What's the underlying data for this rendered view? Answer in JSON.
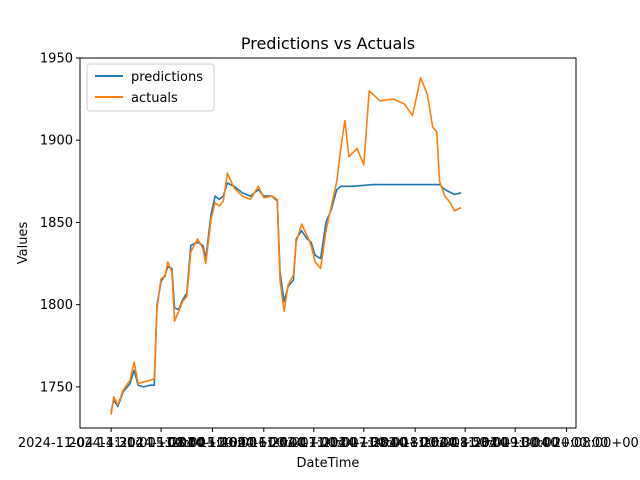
{
  "chart_data": {
    "type": "line",
    "title": "Predictions vs Actuals",
    "xlabel": "DateTime",
    "ylabel": "Values",
    "ylim": [
      1725,
      1950
    ],
    "yticks": [
      1750,
      1800,
      1850,
      1900,
      1950
    ],
    "xticks_labels": [
      "2024-11-04 14:31:00+00:00",
      "2024-11-04 15:08:00+00:00",
      "2024-11-04 15:46:00+00:00",
      "2024-11-04 16:24:00+00:00",
      "2024-11-04 17:01:00+00:00",
      "2024-11-04 17:38:00+00:00",
      "2024-11-04 18:16:00+00:00",
      "2024-11-04 18:53:00+00:00",
      "2024-11-04 19:30:00+00:00",
      "2024-11-04 20:08:00+00:00"
    ],
    "grid": false,
    "legend_position": "top-left",
    "series": [
      {
        "name": "predictions",
        "color": "#1f77b4",
        "points": [
          [
            "2024-11-04 14:31",
            1735
          ],
          [
            "2024-11-04 14:33",
            1742
          ],
          [
            "2024-11-04 14:36",
            1738
          ],
          [
            "2024-11-04 14:40",
            1747
          ],
          [
            "2024-11-04 14:45",
            1752
          ],
          [
            "2024-11-04 14:48",
            1760
          ],
          [
            "2024-11-04 14:51",
            1751
          ],
          [
            "2024-11-04 14:55",
            1750
          ],
          [
            "2024-11-04 15:00",
            1751
          ],
          [
            "2024-11-04 15:03",
            1751
          ],
          [
            "2024-11-04 15:05",
            1800
          ],
          [
            "2024-11-04 15:08",
            1814
          ],
          [
            "2024-11-04 15:11",
            1818
          ],
          [
            "2024-11-04 15:13",
            1823
          ],
          [
            "2024-11-04 15:16",
            1822
          ],
          [
            "2024-11-04 15:18",
            1798
          ],
          [
            "2024-11-04 15:21",
            1797
          ],
          [
            "2024-11-04 15:24",
            1803
          ],
          [
            "2024-11-04 15:27",
            1807
          ],
          [
            "2024-11-04 15:30",
            1836
          ],
          [
            "2024-11-04 15:35",
            1838
          ],
          [
            "2024-11-04 15:39",
            1836
          ],
          [
            "2024-11-04 15:41",
            1828
          ],
          [
            "2024-11-04 15:45",
            1855
          ],
          [
            "2024-11-04 15:48",
            1866
          ],
          [
            "2024-11-04 15:51",
            1864
          ],
          [
            "2024-11-04 15:54",
            1866
          ],
          [
            "2024-11-04 15:57",
            1874
          ],
          [
            "2024-11-04 16:02",
            1872
          ],
          [
            "2024-11-04 16:08",
            1868
          ],
          [
            "2024-11-04 16:14",
            1866
          ],
          [
            "2024-11-04 16:20",
            1870
          ],
          [
            "2024-11-04 16:24",
            1866
          ],
          [
            "2024-11-04 16:30",
            1866
          ],
          [
            "2024-11-04 16:34",
            1863
          ],
          [
            "2024-11-04 16:36",
            1820
          ],
          [
            "2024-11-04 16:39",
            1802
          ],
          [
            "2024-11-04 16:42",
            1811
          ],
          [
            "2024-11-04 16:46",
            1815
          ],
          [
            "2024-11-04 16:48",
            1840
          ],
          [
            "2024-11-04 16:52",
            1845
          ],
          [
            "2024-11-04 16:56",
            1840
          ],
          [
            "2024-11-04 16:59",
            1838
          ],
          [
            "2024-11-04 17:02",
            1830
          ],
          [
            "2024-11-04 17:06",
            1828
          ],
          [
            "2024-11-04 17:10",
            1850
          ],
          [
            "2024-11-04 17:14",
            1858
          ],
          [
            "2024-11-04 17:18",
            1870
          ],
          [
            "2024-11-04 17:21",
            1872
          ],
          [
            "2024-11-04 17:30",
            1872
          ],
          [
            "2024-11-04 17:45",
            1873
          ],
          [
            "2024-11-04 18:00",
            1873
          ],
          [
            "2024-11-04 18:15",
            1873
          ],
          [
            "2024-11-04 18:25",
            1873
          ],
          [
            "2024-11-04 18:34",
            1873
          ],
          [
            "2024-11-04 18:38",
            1870
          ],
          [
            "2024-11-04 18:45",
            1867
          ],
          [
            "2024-11-04 18:50",
            1868
          ]
        ]
      },
      {
        "name": "actuals",
        "color": "#ff7f0e",
        "points": [
          [
            "2024-11-04 14:31",
            1733
          ],
          [
            "2024-11-04 14:33",
            1744
          ],
          [
            "2024-11-04 14:36",
            1739
          ],
          [
            "2024-11-04 14:40",
            1748
          ],
          [
            "2024-11-04 14:45",
            1754
          ],
          [
            "2024-11-04 14:48",
            1765
          ],
          [
            "2024-11-04 14:51",
            1752
          ],
          [
            "2024-11-04 14:55",
            1753
          ],
          [
            "2024-11-04 15:00",
            1754
          ],
          [
            "2024-11-04 15:03",
            1755
          ],
          [
            "2024-11-04 15:05",
            1798
          ],
          [
            "2024-11-04 15:08",
            1816
          ],
          [
            "2024-11-04 15:11",
            1817
          ],
          [
            "2024-11-04 15:13",
            1826
          ],
          [
            "2024-11-04 15:16",
            1820
          ],
          [
            "2024-11-04 15:18",
            1790
          ],
          [
            "2024-11-04 15:21",
            1796
          ],
          [
            "2024-11-04 15:24",
            1802
          ],
          [
            "2024-11-04 15:27",
            1805
          ],
          [
            "2024-11-04 15:30",
            1832
          ],
          [
            "2024-11-04 15:35",
            1840
          ],
          [
            "2024-11-04 15:39",
            1834
          ],
          [
            "2024-11-04 15:41",
            1825
          ],
          [
            "2024-11-04 15:45",
            1852
          ],
          [
            "2024-11-04 15:48",
            1862
          ],
          [
            "2024-11-04 15:51",
            1860
          ],
          [
            "2024-11-04 15:54",
            1863
          ],
          [
            "2024-11-04 15:57",
            1880
          ],
          [
            "2024-11-04 16:02",
            1871
          ],
          [
            "2024-11-04 16:08",
            1866
          ],
          [
            "2024-11-04 16:14",
            1864
          ],
          [
            "2024-11-04 16:20",
            1872
          ],
          [
            "2024-11-04 16:24",
            1865
          ],
          [
            "2024-11-04 16:30",
            1866
          ],
          [
            "2024-11-04 16:34",
            1864
          ],
          [
            "2024-11-04 16:36",
            1815
          ],
          [
            "2024-11-04 16:39",
            1796
          ],
          [
            "2024-11-04 16:42",
            1812
          ],
          [
            "2024-11-04 16:46",
            1818
          ],
          [
            "2024-11-04 16:48",
            1838
          ],
          [
            "2024-11-04 16:52",
            1849
          ],
          [
            "2024-11-04 16:56",
            1842
          ],
          [
            "2024-11-04 16:59",
            1836
          ],
          [
            "2024-11-04 17:02",
            1826
          ],
          [
            "2024-11-04 17:06",
            1822
          ],
          [
            "2024-11-04 17:10",
            1845
          ],
          [
            "2024-11-04 17:14",
            1860
          ],
          [
            "2024-11-04 17:18",
            1875
          ],
          [
            "2024-11-04 17:21",
            1895
          ],
          [
            "2024-11-04 17:24",
            1912
          ],
          [
            "2024-11-04 17:27",
            1890
          ],
          [
            "2024-11-04 17:33",
            1895
          ],
          [
            "2024-11-04 17:38",
            1885
          ],
          [
            "2024-11-04 17:42",
            1930
          ],
          [
            "2024-11-04 17:50",
            1924
          ],
          [
            "2024-11-04 18:00",
            1925
          ],
          [
            "2024-11-04 18:08",
            1922
          ],
          [
            "2024-11-04 18:14",
            1915
          ],
          [
            "2024-11-04 18:20",
            1938
          ],
          [
            "2024-11-04 18:25",
            1928
          ],
          [
            "2024-11-04 18:29",
            1908
          ],
          [
            "2024-11-04 18:32",
            1905
          ],
          [
            "2024-11-04 18:34",
            1875
          ],
          [
            "2024-11-04 18:38",
            1866
          ],
          [
            "2024-11-04 18:42",
            1862
          ],
          [
            "2024-11-04 18:45",
            1857
          ],
          [
            "2024-11-04 18:50",
            1859
          ]
        ]
      }
    ]
  }
}
